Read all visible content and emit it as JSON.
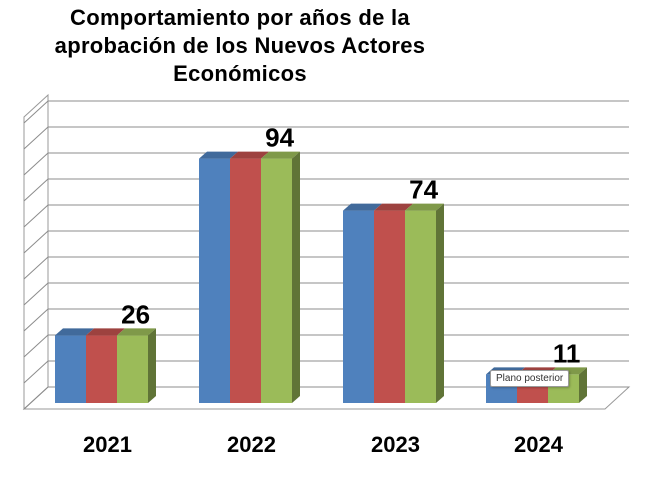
{
  "chart_data": {
    "type": "bar",
    "title": "Comportamiento por años de la\naprobación de los Nuevos Actores\nEconómicos",
    "categories": [
      "2021",
      "2022",
      "2023",
      "2024"
    ],
    "values": [
      26,
      94,
      74,
      11
    ],
    "data_labels": [
      "26",
      "94",
      "74",
      "11"
    ],
    "ylim": [
      0,
      110
    ],
    "grid": true,
    "legend": "none",
    "style": "3d clustered column",
    "colors": [
      "#4f81bd",
      "#c0504d",
      "#9bbb59"
    ]
  },
  "tooltip": {
    "text": "Plano posterior"
  }
}
